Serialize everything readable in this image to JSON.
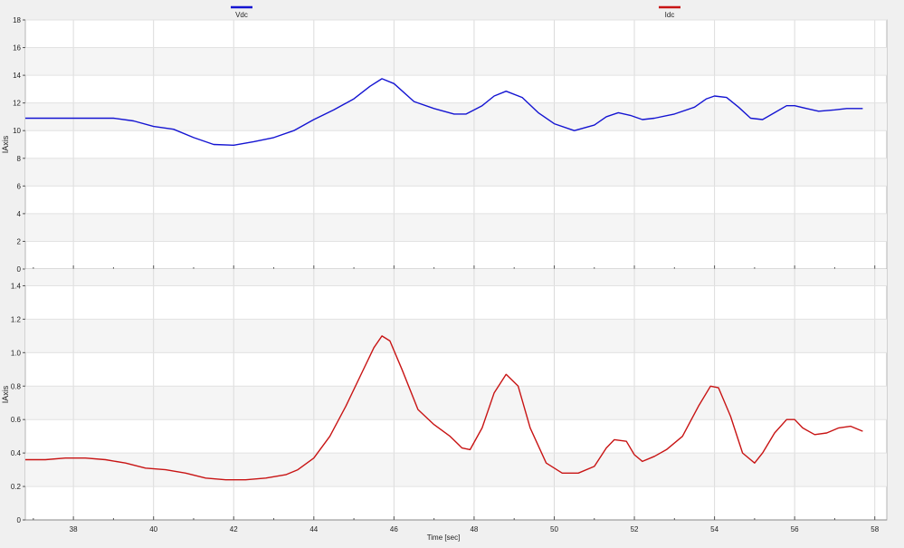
{
  "chart_data": [
    {
      "type": "line",
      "legend": "top",
      "xlabel": "Time [sec]",
      "ylabel": "IAxis",
      "xlim": [
        36.8,
        58.3
      ],
      "ylim": [
        0,
        18
      ],
      "yticks": [
        0,
        2,
        4,
        6,
        8,
        10,
        12,
        14,
        16,
        18
      ],
      "ytick_labels": [
        "0",
        "2",
        "4",
        "6",
        "8",
        "10",
        "12",
        "14",
        "16",
        "18"
      ],
      "grid": true,
      "series": [
        {
          "name": "Vdc",
          "color": "#1414d2",
          "x": [
            36.8,
            37.5,
            38.5,
            39.0,
            39.5,
            40.0,
            40.5,
            41.0,
            41.5,
            42.0,
            42.5,
            43.0,
            43.5,
            44.0,
            44.5,
            45.0,
            45.4,
            45.7,
            46.0,
            46.5,
            47.0,
            47.5,
            47.8,
            48.2,
            48.5,
            48.8,
            49.2,
            49.6,
            50.0,
            50.5,
            51.0,
            51.3,
            51.6,
            51.9,
            52.2,
            52.5,
            53.0,
            53.5,
            53.8,
            54.0,
            54.3,
            54.6,
            54.9,
            55.2,
            55.5,
            55.8,
            56.0,
            56.3,
            56.6,
            57.0,
            57.3,
            57.7
          ],
          "values": [
            10.9,
            10.9,
            10.9,
            10.9,
            10.7,
            10.3,
            10.1,
            9.5,
            9.0,
            8.95,
            9.2,
            9.5,
            10.0,
            10.8,
            11.5,
            12.3,
            13.2,
            13.75,
            13.4,
            12.1,
            11.6,
            11.2,
            11.2,
            11.8,
            12.5,
            12.85,
            12.4,
            11.3,
            10.5,
            10.0,
            10.4,
            11.0,
            11.3,
            11.1,
            10.8,
            10.9,
            11.2,
            11.7,
            12.3,
            12.5,
            12.4,
            11.7,
            10.9,
            10.8,
            11.3,
            11.8,
            11.8,
            11.6,
            11.4,
            11.5,
            11.6,
            11.6
          ]
        }
      ]
    },
    {
      "type": "line",
      "legend": "top",
      "xlabel": "Time [sec]",
      "ylabel": "IAxis",
      "xlim": [
        36.8,
        58.3
      ],
      "ylim": [
        0,
        1.5
      ],
      "yticks": [
        0,
        0.2,
        0.4,
        0.6,
        0.8,
        1.0,
        1.2,
        1.4
      ],
      "ytick_labels": [
        "0",
        "0.2",
        "0.4",
        "0.6",
        "0.8",
        "1.0",
        "1.2",
        "1.4"
      ],
      "xticks": [
        38,
        40,
        42,
        44,
        46,
        48,
        50,
        52,
        54,
        56,
        58
      ],
      "xtick_labels": [
        "38",
        "40",
        "42",
        "44",
        "46",
        "48",
        "50",
        "52",
        "54",
        "56",
        "58"
      ],
      "grid": true,
      "series": [
        {
          "name": "Idc",
          "color": "#c81414",
          "x": [
            36.8,
            37.3,
            37.8,
            38.3,
            38.8,
            39.3,
            39.8,
            40.3,
            40.8,
            41.3,
            41.8,
            42.3,
            42.8,
            43.3,
            43.6,
            44.0,
            44.4,
            44.8,
            45.2,
            45.5,
            45.7,
            45.9,
            46.2,
            46.6,
            47.0,
            47.4,
            47.7,
            47.9,
            48.2,
            48.5,
            48.8,
            49.1,
            49.4,
            49.8,
            50.2,
            50.6,
            51.0,
            51.3,
            51.5,
            51.8,
            52.0,
            52.2,
            52.5,
            52.8,
            53.2,
            53.6,
            53.9,
            54.1,
            54.4,
            54.7,
            55.0,
            55.2,
            55.5,
            55.8,
            56.0,
            56.2,
            56.5,
            56.8,
            57.1,
            57.4,
            57.7
          ],
          "values": [
            0.36,
            0.36,
            0.37,
            0.37,
            0.36,
            0.34,
            0.31,
            0.3,
            0.28,
            0.25,
            0.24,
            0.24,
            0.25,
            0.27,
            0.3,
            0.37,
            0.5,
            0.68,
            0.88,
            1.03,
            1.1,
            1.07,
            0.9,
            0.66,
            0.57,
            0.5,
            0.43,
            0.42,
            0.55,
            0.76,
            0.87,
            0.8,
            0.55,
            0.34,
            0.28,
            0.28,
            0.32,
            0.43,
            0.48,
            0.47,
            0.39,
            0.35,
            0.38,
            0.42,
            0.5,
            0.68,
            0.8,
            0.79,
            0.62,
            0.4,
            0.34,
            0.4,
            0.52,
            0.6,
            0.6,
            0.55,
            0.51,
            0.52,
            0.55,
            0.56,
            0.53
          ]
        }
      ]
    }
  ]
}
